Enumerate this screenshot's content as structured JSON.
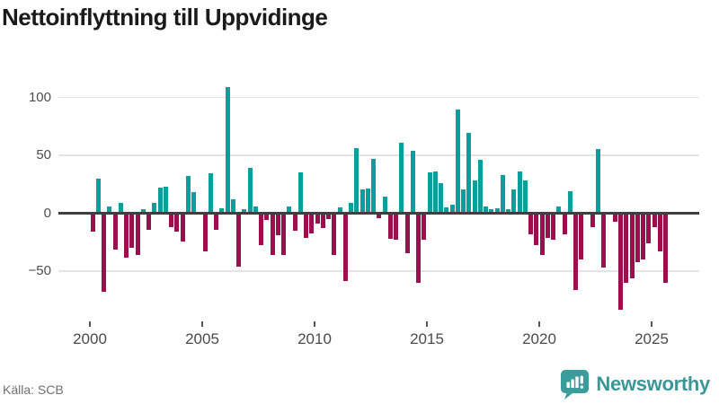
{
  "title": "Nettoinflyttning till Uppvidinge",
  "source": "Källa: SCB",
  "branding": {
    "logo_text": "Newsworthy",
    "logo_icon": "newsworthy-speech-bubble-bar-chart-icon"
  },
  "colors": {
    "positive_bar": "#0a9f9d",
    "negative_bar": "#9c0f4e",
    "zero_line": "#3f3f3f",
    "gridline": "#e4e4e4",
    "axis_text": "#4a4a4a",
    "title_text": "#1a1a1a",
    "source_text": "#707070",
    "brand_teal": "#3a9797"
  },
  "chart_data": {
    "type": "bar",
    "title": "Nettoinflyttning till Uppvidinge",
    "series_name": "Nettoinflyttning (personer per kvartal)",
    "frequency": "quarterly",
    "start": "2000Q1",
    "end": "2025Q3",
    "xlabel": "",
    "ylabel": "",
    "grid": "horizontal",
    "legend": "none",
    "ylim": [
      -90,
      115
    ],
    "y_ticks": [
      100,
      50,
      0,
      -50
    ],
    "y_tick_labels": [
      "100",
      "50",
      "0",
      "−50"
    ],
    "x_tick_labels": [
      "2000",
      "2005",
      "2010",
      "2015",
      "2020",
      "2025"
    ],
    "x_tick_year_step": 5,
    "values_by_year": {
      "2000": [
        -15,
        29,
        -67,
        5
      ],
      "2001": [
        -30,
        8,
        -37,
        -29
      ],
      "2002": [
        -35,
        2,
        -13,
        8
      ],
      "2003": [
        21,
        22,
        -11,
        -15
      ],
      "2004": [
        -23,
        31,
        17,
        0
      ],
      "2005": [
        -32,
        33,
        -13,
        3
      ],
      "2006": [
        108,
        11,
        -45,
        2
      ],
      "2007": [
        38,
        5,
        -26,
        -5
      ],
      "2008": [
        -35,
        -18,
        -35,
        5
      ],
      "2009": [
        -14,
        34,
        -20,
        -16
      ],
      "2010": [
        -8,
        -12,
        -4,
        -35
      ],
      "2011": [
        4,
        -57,
        8,
        55
      ],
      "2012": [
        19,
        20,
        46,
        -3
      ],
      "2013": [
        13,
        -21,
        -22,
        60
      ],
      "2014": [
        -33,
        53,
        -59,
        -22
      ],
      "2015": [
        34,
        35,
        25,
        4
      ],
      "2016": [
        6,
        88,
        19,
        68
      ],
      "2017": [
        27,
        45,
        5,
        2
      ],
      "2018": [
        3,
        32,
        2,
        19
      ],
      "2019": [
        35,
        27,
        -17,
        -26
      ],
      "2020": [
        -35,
        -20,
        -22,
        5
      ],
      "2021": [
        -17,
        18,
        -65,
        -39
      ],
      "2022": [
        0,
        -11,
        54,
        -46
      ],
      "2023": [
        0,
        -6,
        -82,
        -59
      ],
      "2024": [
        -55,
        -41,
        -39,
        -25
      ],
      "2025": [
        -11,
        -32,
        -59
      ]
    }
  }
}
